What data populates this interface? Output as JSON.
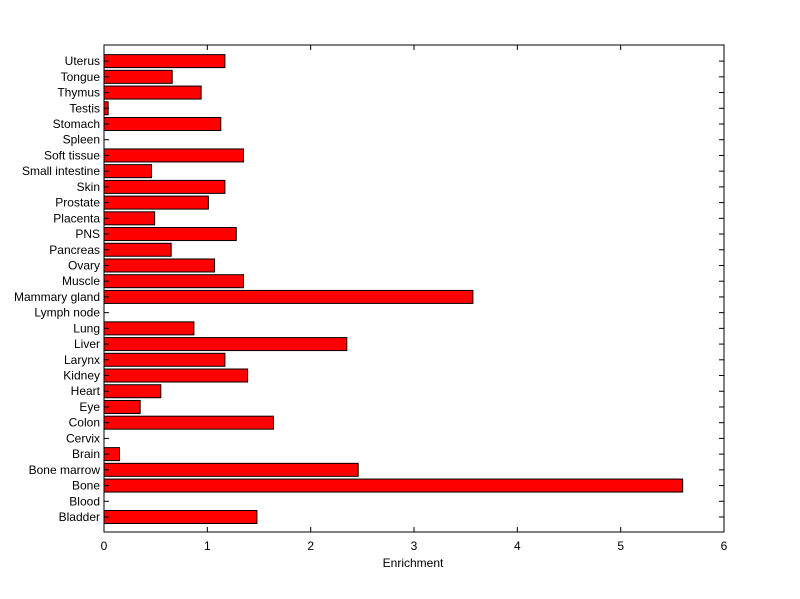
{
  "chart_data": {
    "type": "bar",
    "orientation": "horizontal",
    "title": "",
    "xlabel": "Enrichment",
    "ylabel": "",
    "xlim": [
      0,
      6
    ],
    "xticks": [
      0,
      1,
      2,
      3,
      4,
      5,
      6
    ],
    "grid": false,
    "legend": "none",
    "bar_color": "#ff0000",
    "edge_color": "#000000",
    "categories": [
      "Bladder",
      "Blood",
      "Bone",
      "Bone marrow",
      "Brain",
      "Cervix",
      "Colon",
      "Eye",
      "Heart",
      "Kidney",
      "Larynx",
      "Liver",
      "Lung",
      "Lymph node",
      "Mammary gland",
      "Muscle",
      "Ovary",
      "Pancreas",
      "PNS",
      "Placenta",
      "Prostate",
      "Skin",
      "Small intestine",
      "Soft tissue",
      "Spleen",
      "Stomach",
      "Testis",
      "Thymus",
      "Tongue",
      "Uterus"
    ],
    "values": [
      1.48,
      0,
      5.6,
      2.46,
      0.15,
      0,
      1.64,
      0.35,
      0.55,
      1.39,
      1.17,
      2.35,
      0.87,
      0,
      3.57,
      1.35,
      1.07,
      0.65,
      1.28,
      0.49,
      1.01,
      1.17,
      0.46,
      1.35,
      0,
      1.13,
      0.04,
      0.94,
      0.66,
      1.17
    ]
  }
}
